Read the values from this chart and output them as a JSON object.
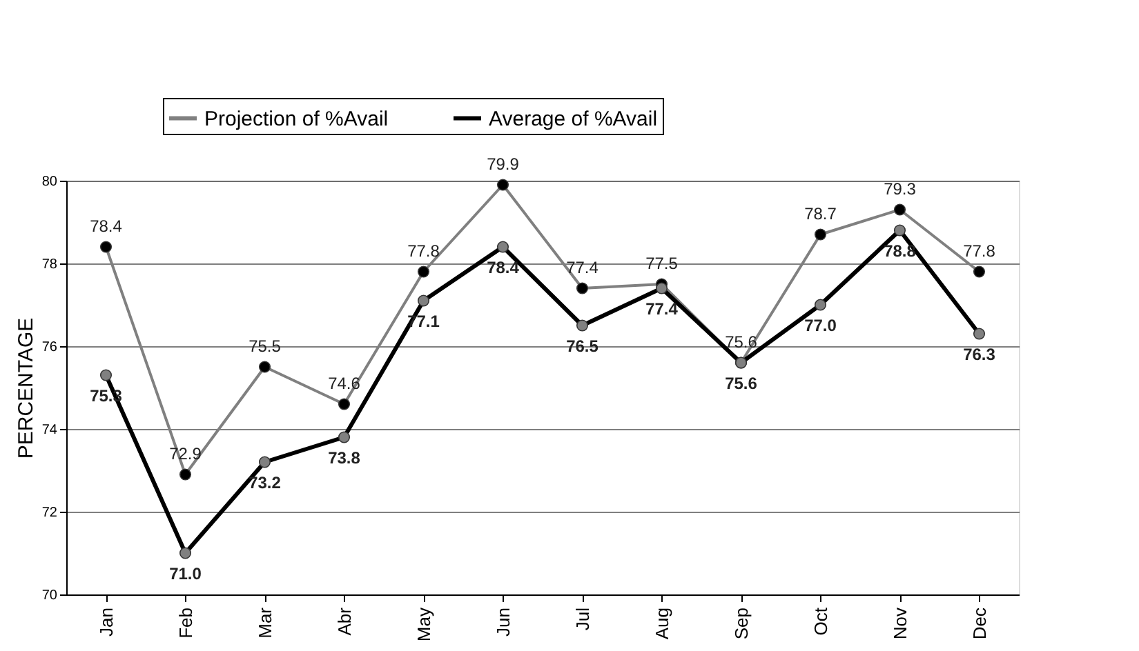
{
  "chart_data": {
    "type": "line",
    "ylabel": "PERCENTAGE",
    "categories": [
      "Jan",
      "Feb",
      "Mar",
      "Abr",
      "May",
      "Jun",
      "Jul",
      "Aug",
      "Sep",
      "Oct",
      "Nov",
      "Dec"
    ],
    "series": [
      {
        "name": "Projection of %Avail",
        "color": "#808080",
        "values": [
          78.4,
          72.9,
          75.5,
          74.6,
          77.8,
          79.9,
          77.4,
          77.5,
          75.6,
          78.7,
          79.3,
          77.8
        ],
        "value_labels": [
          "78.4",
          "72.9",
          "75.5",
          "74.6",
          "77.8",
          "79.9",
          "77.4",
          "77.5",
          "75.6",
          "78.7",
          "79.3",
          "77.8"
        ]
      },
      {
        "name": "Average of %Avail",
        "color": "#000000",
        "values": [
          75.3,
          71.0,
          73.2,
          73.8,
          77.1,
          78.4,
          76.5,
          77.4,
          75.6,
          77.0,
          78.8,
          76.3
        ],
        "value_labels": [
          "75.3",
          "71.0",
          "73.2",
          "73.8",
          "77.1",
          "78.4",
          "76.5",
          "77.4",
          "75.6",
          "77.0",
          "78.8",
          "76.3"
        ]
      }
    ],
    "ylim": [
      70,
      80
    ],
    "yticks": [
      70,
      72,
      74,
      76,
      78,
      80
    ],
    "grid": "y",
    "legend": "top",
    "marker": "circle",
    "line_style": "solid"
  }
}
